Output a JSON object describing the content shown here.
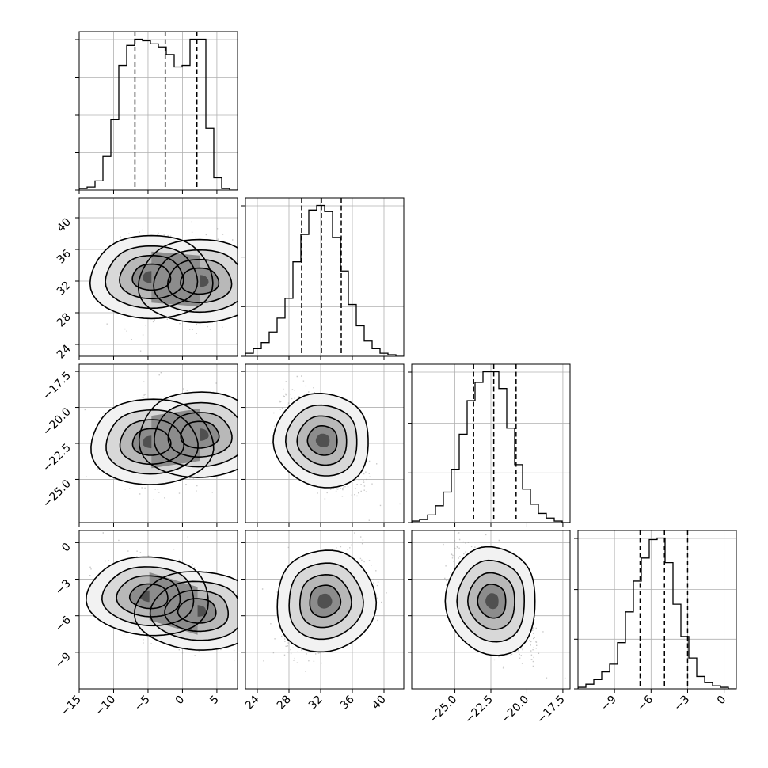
{
  "chart_data": {
    "type": "corner",
    "title": "",
    "grid": true,
    "quantile_lines": "dashed",
    "parameters": [
      {
        "id": "p0",
        "range": [
          -15,
          8
        ],
        "ticks": [
          -15,
          -10,
          -5,
          0,
          5
        ],
        "tick_labels": [
          "−15",
          "−10",
          "−5",
          "0",
          "5"
        ],
        "quantiles": [
          -6.9,
          -2.5,
          2.1
        ],
        "hist_counts": [
          1,
          2,
          6,
          22,
          46,
          81,
          94,
          98,
          97,
          95,
          93,
          88,
          80,
          81,
          98,
          98,
          40,
          8,
          1,
          0
        ]
      },
      {
        "id": "p1",
        "range": [
          22.5,
          42.5
        ],
        "ticks": [
          24,
          28,
          32,
          36,
          40
        ],
        "tick_labels": [
          "24",
          "28",
          "32",
          "36",
          "40"
        ],
        "quantiles": [
          29.6,
          32.1,
          34.6
        ],
        "hist_counts": [
          2,
          5,
          9,
          16,
          25,
          38,
          62,
          80,
          96,
          99,
          95,
          78,
          56,
          34,
          20,
          10,
          5,
          2,
          1,
          0
        ]
      },
      {
        "id": "p2",
        "range": [
          -28.0,
          -17.0
        ],
        "ticks": [
          -25.0,
          -22.5,
          -20.0,
          -17.5
        ],
        "tick_labels": [
          "−25.0",
          "−22.5",
          "−20.0",
          "−17.5"
        ],
        "quantiles": [
          -23.7,
          -22.3,
          -20.75
        ],
        "hist_counts": [
          1,
          2,
          5,
          11,
          20,
          35,
          58,
          80,
          92,
          99,
          99,
          88,
          62,
          38,
          22,
          12,
          6,
          3,
          1,
          0
        ]
      },
      {
        "id": "p3",
        "range": [
          -12.0,
          1.0
        ],
        "ticks": [
          -9,
          -6,
          -3,
          0
        ],
        "tick_labels": [
          "−9",
          "−6",
          "−3",
          "0"
        ],
        "quantiles": [
          -6.9,
          -4.9,
          -3.0
        ],
        "hist_counts": [
          1,
          3,
          6,
          11,
          16,
          30,
          50,
          70,
          85,
          97,
          98,
          82,
          55,
          34,
          20,
          8,
          4,
          2,
          1,
          0
        ]
      }
    ],
    "pairs": [
      {
        "x": 0,
        "y": 1,
        "centers": [
          [
            -4.5,
            32.5
          ],
          [
            2.5,
            32.0
          ]
        ],
        "spread_x": 3.2,
        "spread_y": 2.3,
        "rho": 0.0
      },
      {
        "x": 0,
        "y": 2,
        "centers": [
          [
            -4.5,
            -22.4
          ],
          [
            2.5,
            -21.9
          ]
        ],
        "spread_x": 3.2,
        "spread_y": 1.3,
        "rho": 0.1
      },
      {
        "x": 1,
        "y": 2,
        "centers": [
          [
            32.3,
            -22.3
          ]
        ],
        "spread_x": 2.5,
        "spread_y": 1.4,
        "rho": -0.55
      },
      {
        "x": 0,
        "y": 3,
        "centers": [
          [
            -4.8,
            -4.4
          ],
          [
            2.2,
            -5.6
          ]
        ],
        "spread_x": 3.2,
        "spread_y": 1.4,
        "rho": -0.3
      },
      {
        "x": 1,
        "y": 3,
        "centers": [
          [
            32.5,
            -4.8
          ]
        ],
        "spread_x": 2.6,
        "spread_y": 1.8,
        "rho": 0.4
      },
      {
        "x": 2,
        "y": 3,
        "centers": [
          [
            -22.4,
            -4.8
          ]
        ],
        "spread_x": 1.3,
        "spread_y": 1.9,
        "rho": -0.6
      }
    ],
    "hist_ticks": [
      [
        0.0,
        0.25,
        0.5,
        0.75,
        1.0
      ],
      [
        0.0,
        0.33,
        0.66,
        1.0
      ],
      [
        0.0,
        0.33,
        0.66,
        1.0
      ],
      [
        0.0,
        0.33,
        0.66,
        1.0
      ]
    ]
  }
}
